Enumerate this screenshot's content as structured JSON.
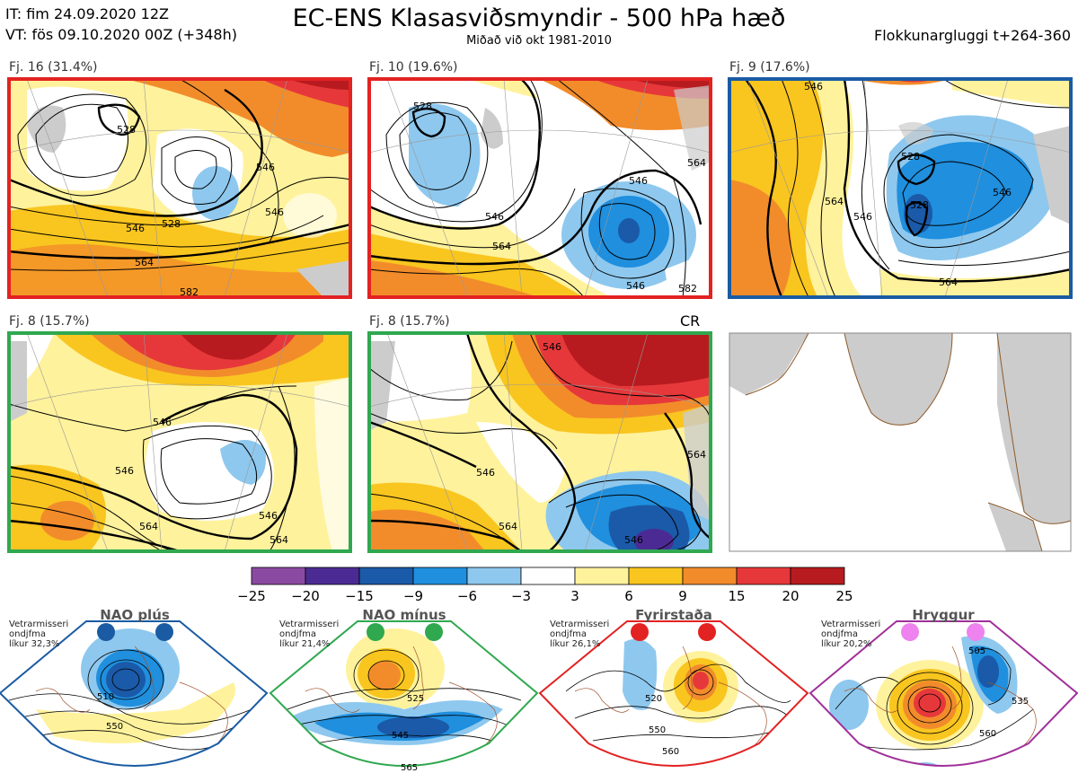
{
  "header": {
    "it": "IT: fim 24.09.2020 12Z",
    "vt": "VT: fös 09.10.2020 00Z  (+348h)",
    "title": "EC-ENS Klasasviðsmyndir - 500 hPa hæð",
    "subtitle": "Miðað við okt 1981-2010",
    "window": "Flokkunargluggi t+264-360"
  },
  "panels": [
    {
      "label": "Fj. 16 (31.4%)",
      "border": "#e32222",
      "contours": [
        "546",
        "528",
        "546",
        "564",
        "546",
        "528",
        "582"
      ]
    },
    {
      "label": "Fj. 10 (19.6%)",
      "border": "#e32222",
      "contours": [
        "528",
        "546",
        "564",
        "546",
        "564",
        "546",
        "582"
      ]
    },
    {
      "label": "Fj. 9 (17.6%)",
      "border": "#1a5ba3",
      "contours": [
        "546",
        "528",
        "564",
        "546",
        "528",
        "546",
        "564"
      ]
    },
    {
      "label": "Fj. 8 (15.7%)",
      "border": "#2fa84f",
      "contours": [
        "546",
        "546",
        "564",
        "546",
        "564"
      ]
    },
    {
      "label": "Fj. 8 (15.7%)",
      "border": "#2fa84f",
      "contours": [
        "546",
        "546",
        "564",
        "564",
        "546"
      ]
    }
  ],
  "cr_label": "CR",
  "colorbar": {
    "colors": [
      "#8b4aa2",
      "#4b2b93",
      "#1a5aa8",
      "#1f8fde",
      "#8ec8ee",
      "#ffffff",
      "#fff29c",
      "#f9c51f",
      "#f28c2b",
      "#e6383a",
      "#b71b1f"
    ],
    "labels": [
      "−25",
      "−20",
      "−15",
      "−9",
      "−6",
      "−3",
      "3",
      "6",
      "9",
      "15",
      "20",
      "25"
    ]
  },
  "regimes": [
    {
      "title": "NAO plús",
      "note": [
        "Vetrarmisseri",
        "ondjfma",
        "líkur 32,3%"
      ],
      "color": "#1a5ba3",
      "contours": [
        "510",
        "550"
      ]
    },
    {
      "title": "NAO mínus",
      "note": [
        "Vetrarmisseri",
        "ondjfma",
        "líkur 21,4%"
      ],
      "color": "#2fa84f",
      "contours": [
        "525",
        "545",
        "565"
      ]
    },
    {
      "title": "Fyrirstaða",
      "note": [
        "Vetrarmisseri",
        "ondjfma",
        "líkur 26,1%"
      ],
      "color": "#e32222",
      "contours": [
        "520",
        "550",
        "560"
      ]
    },
    {
      "title": "Hryggur",
      "note": [
        "Vetrarmisseri",
        "ondjfma",
        "líkur 20,2%"
      ],
      "color": "#a0309a",
      "dot_color": "#ee82ee",
      "contours": [
        "505",
        "535",
        "560"
      ]
    }
  ]
}
